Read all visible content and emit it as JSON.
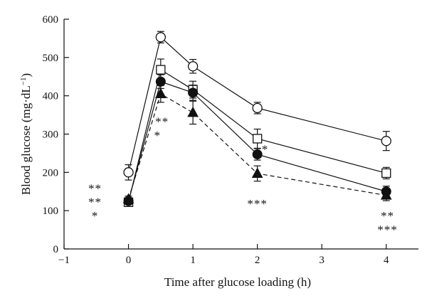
{
  "chart_data": {
    "type": "line",
    "title": "",
    "xlabel": "Time after glucose loading (h)",
    "ylabel": "Blood glucose (mg·dL",
    "ylabel_superscript": "−1",
    "ylabel_close": ")",
    "xlim": [
      -1,
      4.5
    ],
    "ylim": [
      0,
      600
    ],
    "x_ticks": [
      -1,
      0,
      1,
      2,
      3,
      4
    ],
    "x_tick_labels": [
      "−1",
      "0",
      "1",
      "2",
      "3",
      "4"
    ],
    "y_ticks": [
      0,
      100,
      200,
      300,
      400,
      500,
      600
    ],
    "y_tick_labels": [
      "0",
      "100",
      "200",
      "300",
      "400",
      "500",
      "600"
    ],
    "grid": false,
    "series": [
      {
        "marker": "open-circle",
        "line": "solid",
        "x": [
          0,
          0.5,
          1,
          2,
          4
        ],
        "y": [
          200,
          553,
          477,
          368,
          282
        ],
        "err": [
          20,
          15,
          18,
          15,
          25
        ]
      },
      {
        "marker": "open-square",
        "line": "solid",
        "x": [
          0,
          0.5,
          1,
          2,
          4
        ],
        "y": [
          122,
          468,
          416,
          288,
          198
        ],
        "err": [
          8,
          28,
          22,
          25,
          15
        ]
      },
      {
        "marker": "filled-circle",
        "line": "solid",
        "x": [
          0,
          0.5,
          1,
          2,
          4
        ],
        "y": [
          125,
          437,
          408,
          247,
          150
        ],
        "err": [
          8,
          18,
          20,
          15,
          14
        ]
      },
      {
        "marker": "filled-triangle",
        "line": "dashed",
        "x": [
          0,
          0.5,
          1,
          2,
          4
        ],
        "y": [
          130,
          405,
          356,
          197,
          140
        ],
        "err": [
          8,
          22,
          30,
          20,
          14
        ]
      }
    ],
    "annotations": [
      {
        "x": -0.52,
        "y": 148,
        "text": "**"
      },
      {
        "x": -0.52,
        "y": 112,
        "text": "**"
      },
      {
        "x": -0.52,
        "y": 76,
        "text": "*"
      },
      {
        "x": 0.52,
        "y": 322,
        "text": "**"
      },
      {
        "x": 0.45,
        "y": 286,
        "text": "*"
      },
      {
        "x": 2.12,
        "y": 250,
        "text": "*"
      },
      {
        "x": 2.0,
        "y": 108,
        "text": "***"
      },
      {
        "x": 4.02,
        "y": 76,
        "text": "**"
      },
      {
        "x": 4.02,
        "y": 40,
        "text": "***"
      }
    ]
  }
}
